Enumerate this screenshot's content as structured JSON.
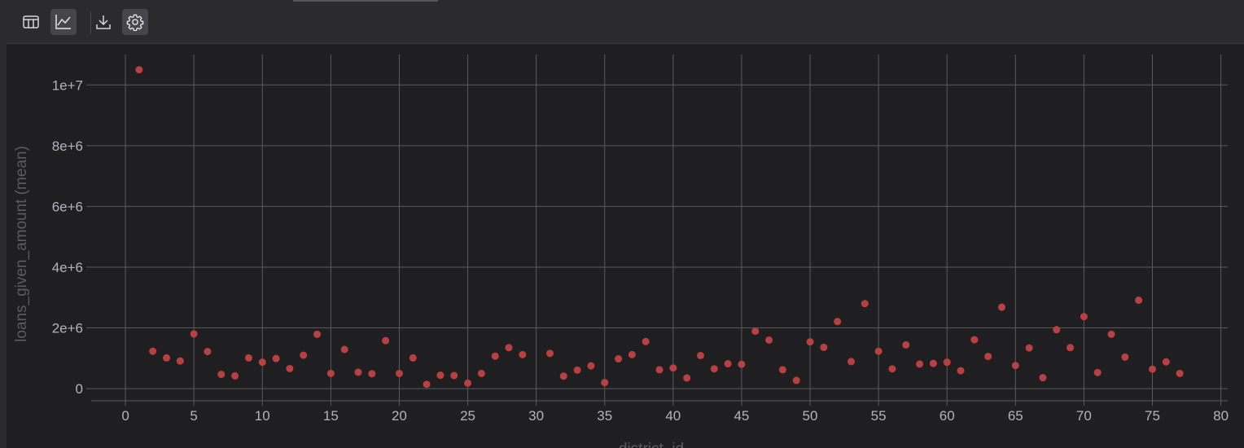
{
  "toolbar": {
    "buttons": [
      {
        "name": "table-view-button",
        "icon": "table-icon",
        "active": false
      },
      {
        "name": "chart-view-button",
        "icon": "line-chart-icon",
        "active": true
      },
      {
        "name": "download-button",
        "icon": "download-icon",
        "active": false
      },
      {
        "name": "settings-button",
        "icon": "gear-icon",
        "active": true
      }
    ]
  },
  "colors": {
    "background": "#1f1f22",
    "toolbar": "#2b2b2e",
    "grid": "#5a5a5e",
    "point": "#b94040"
  },
  "chart_data": {
    "type": "scatter",
    "title": "",
    "xlabel": "district_id",
    "ylabel": "loans_given_amount (mean)",
    "xlim": [
      -2.5,
      80.5
    ],
    "ylim": [
      -400000,
      11000000
    ],
    "xticks": [
      0,
      5,
      10,
      15,
      20,
      25,
      30,
      35,
      40,
      45,
      50,
      55,
      60,
      65,
      70,
      75,
      80
    ],
    "xtick_labels": [
      "0",
      "5",
      "10",
      "15",
      "20",
      "25",
      "30",
      "35",
      "40",
      "45",
      "50",
      "55",
      "60",
      "65",
      "70",
      "75",
      "80"
    ],
    "yticks": [
      0,
      2000000,
      4000000,
      6000000,
      8000000,
      10000000
    ],
    "ytick_labels": [
      "0",
      "2e+6",
      "4e+6",
      "6e+6",
      "8e+6",
      "1e+7"
    ],
    "grid": true,
    "legend": false,
    "series": [
      {
        "x": [
          1,
          2,
          3,
          4,
          5,
          6,
          7,
          8,
          9,
          10,
          11,
          12,
          13,
          14,
          15,
          16,
          17,
          18,
          19,
          20,
          21,
          22,
          23,
          24,
          25,
          26,
          27,
          28,
          29,
          31,
          32,
          33,
          34,
          35,
          36,
          37,
          38,
          39,
          40,
          41,
          42,
          43,
          44,
          45,
          46,
          47,
          48,
          49,
          50,
          51,
          52,
          53,
          54,
          55,
          56,
          57,
          58,
          59,
          60,
          61,
          62,
          63,
          64,
          65,
          66,
          67,
          68,
          69,
          70,
          71,
          72,
          73,
          74,
          75,
          76,
          77
        ],
        "y": [
          10500000,
          1230000,
          1010000,
          910000,
          1800000,
          1220000,
          470000,
          420000,
          1010000,
          870000,
          990000,
          660000,
          1100000,
          1790000,
          500000,
          1290000,
          540000,
          490000,
          1580000,
          500000,
          1010000,
          140000,
          440000,
          430000,
          180000,
          500000,
          1070000,
          1350000,
          1120000,
          1160000,
          410000,
          610000,
          750000,
          200000,
          980000,
          1120000,
          1550000,
          620000,
          680000,
          350000,
          1090000,
          650000,
          820000,
          800000,
          1890000,
          1600000,
          620000,
          270000,
          1540000,
          1360000,
          2210000,
          890000,
          2800000,
          1230000,
          650000,
          1440000,
          810000,
          830000,
          870000,
          590000,
          1610000,
          1060000,
          2680000,
          760000,
          1340000,
          360000,
          1940000,
          1350000,
          2370000,
          530000,
          1790000,
          1040000,
          2910000,
          640000,
          880000,
          500000
        ]
      }
    ]
  }
}
